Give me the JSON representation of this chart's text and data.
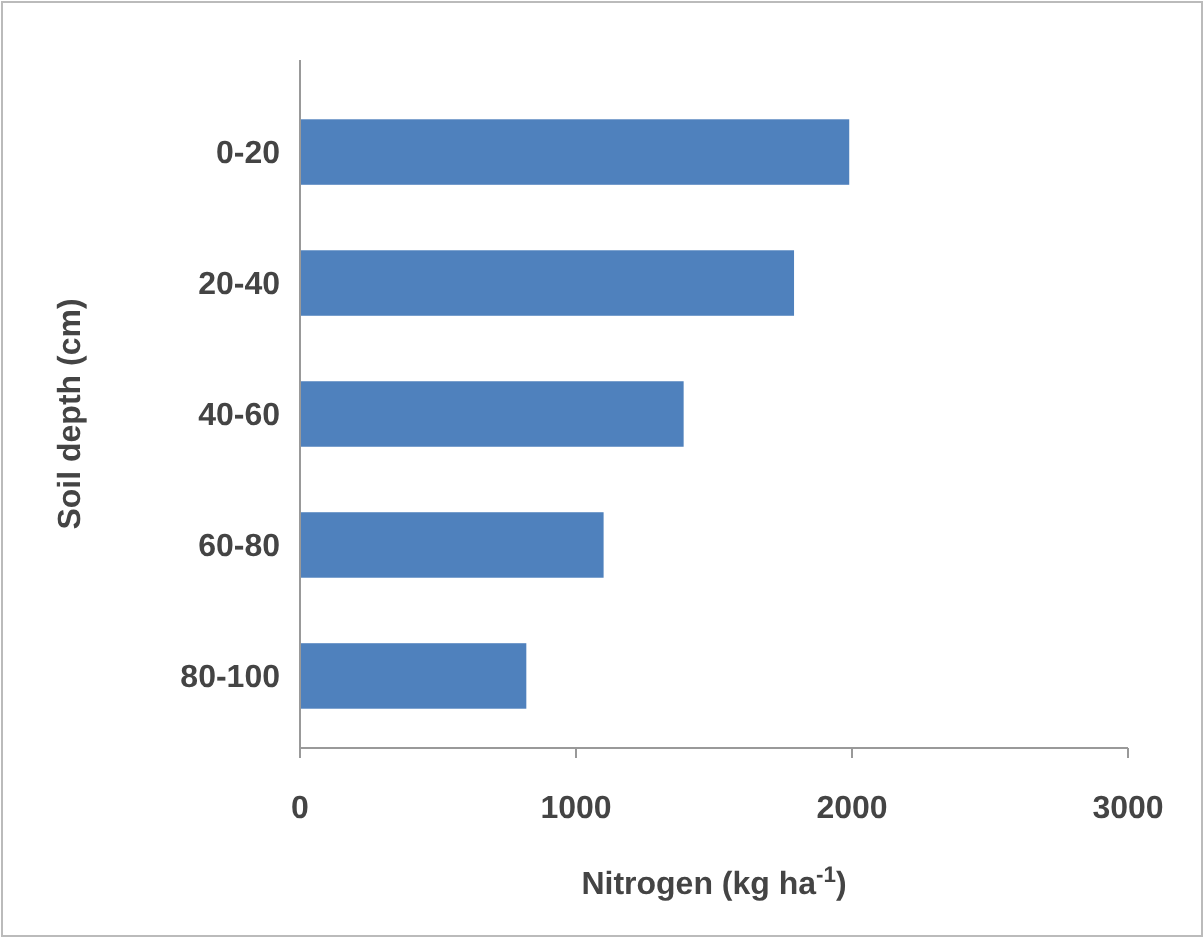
{
  "chart_data": {
    "type": "bar",
    "orientation": "horizontal",
    "categories": [
      "0-20",
      "20-40",
      "40-60",
      "60-80",
      "80-100"
    ],
    "values": [
      1990,
      1790,
      1390,
      1100,
      820
    ],
    "color": "#4f81bd",
    "xlabel": "Nitrogen (kg ha$^{-1}$)",
    "ylabel": "Soil depth (cm)",
    "xlim": [
      0,
      3000
    ],
    "xticks": [
      0,
      1000,
      2000,
      3000
    ],
    "grid": false
  }
}
